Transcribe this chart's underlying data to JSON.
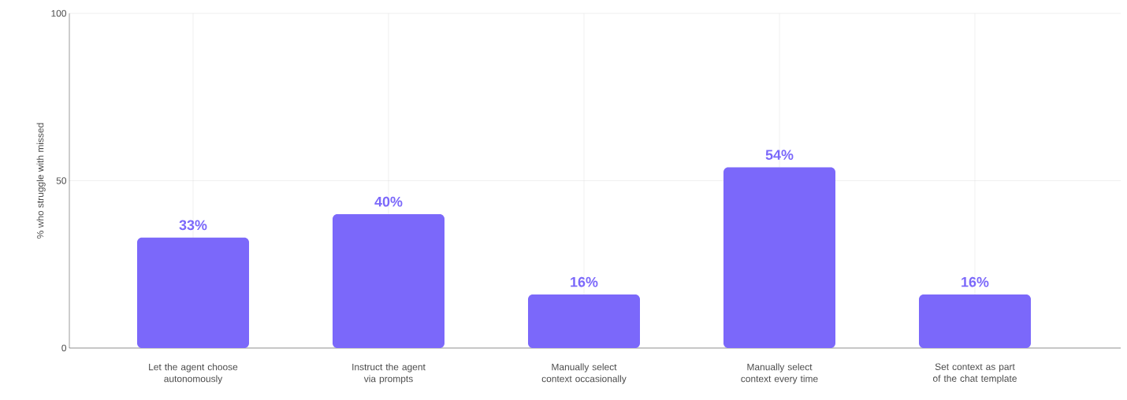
{
  "chart_data": {
    "type": "bar",
    "ylabel": "% who struggle with missed",
    "categories": [
      "Let the agent choose autonomously",
      "Instruct the agent via prompts",
      "Manually select context occasionally",
      "Manually select context every time",
      "Set context as part of the chat template"
    ],
    "values": [
      33,
      40,
      16,
      54,
      16
    ],
    "value_labels": [
      "33%",
      "40%",
      "16%",
      "54%",
      "16%"
    ],
    "color": "#7b68fa",
    "ylim": [
      0,
      100
    ],
    "yticks": [
      0,
      50,
      100
    ],
    "grid": true
  }
}
